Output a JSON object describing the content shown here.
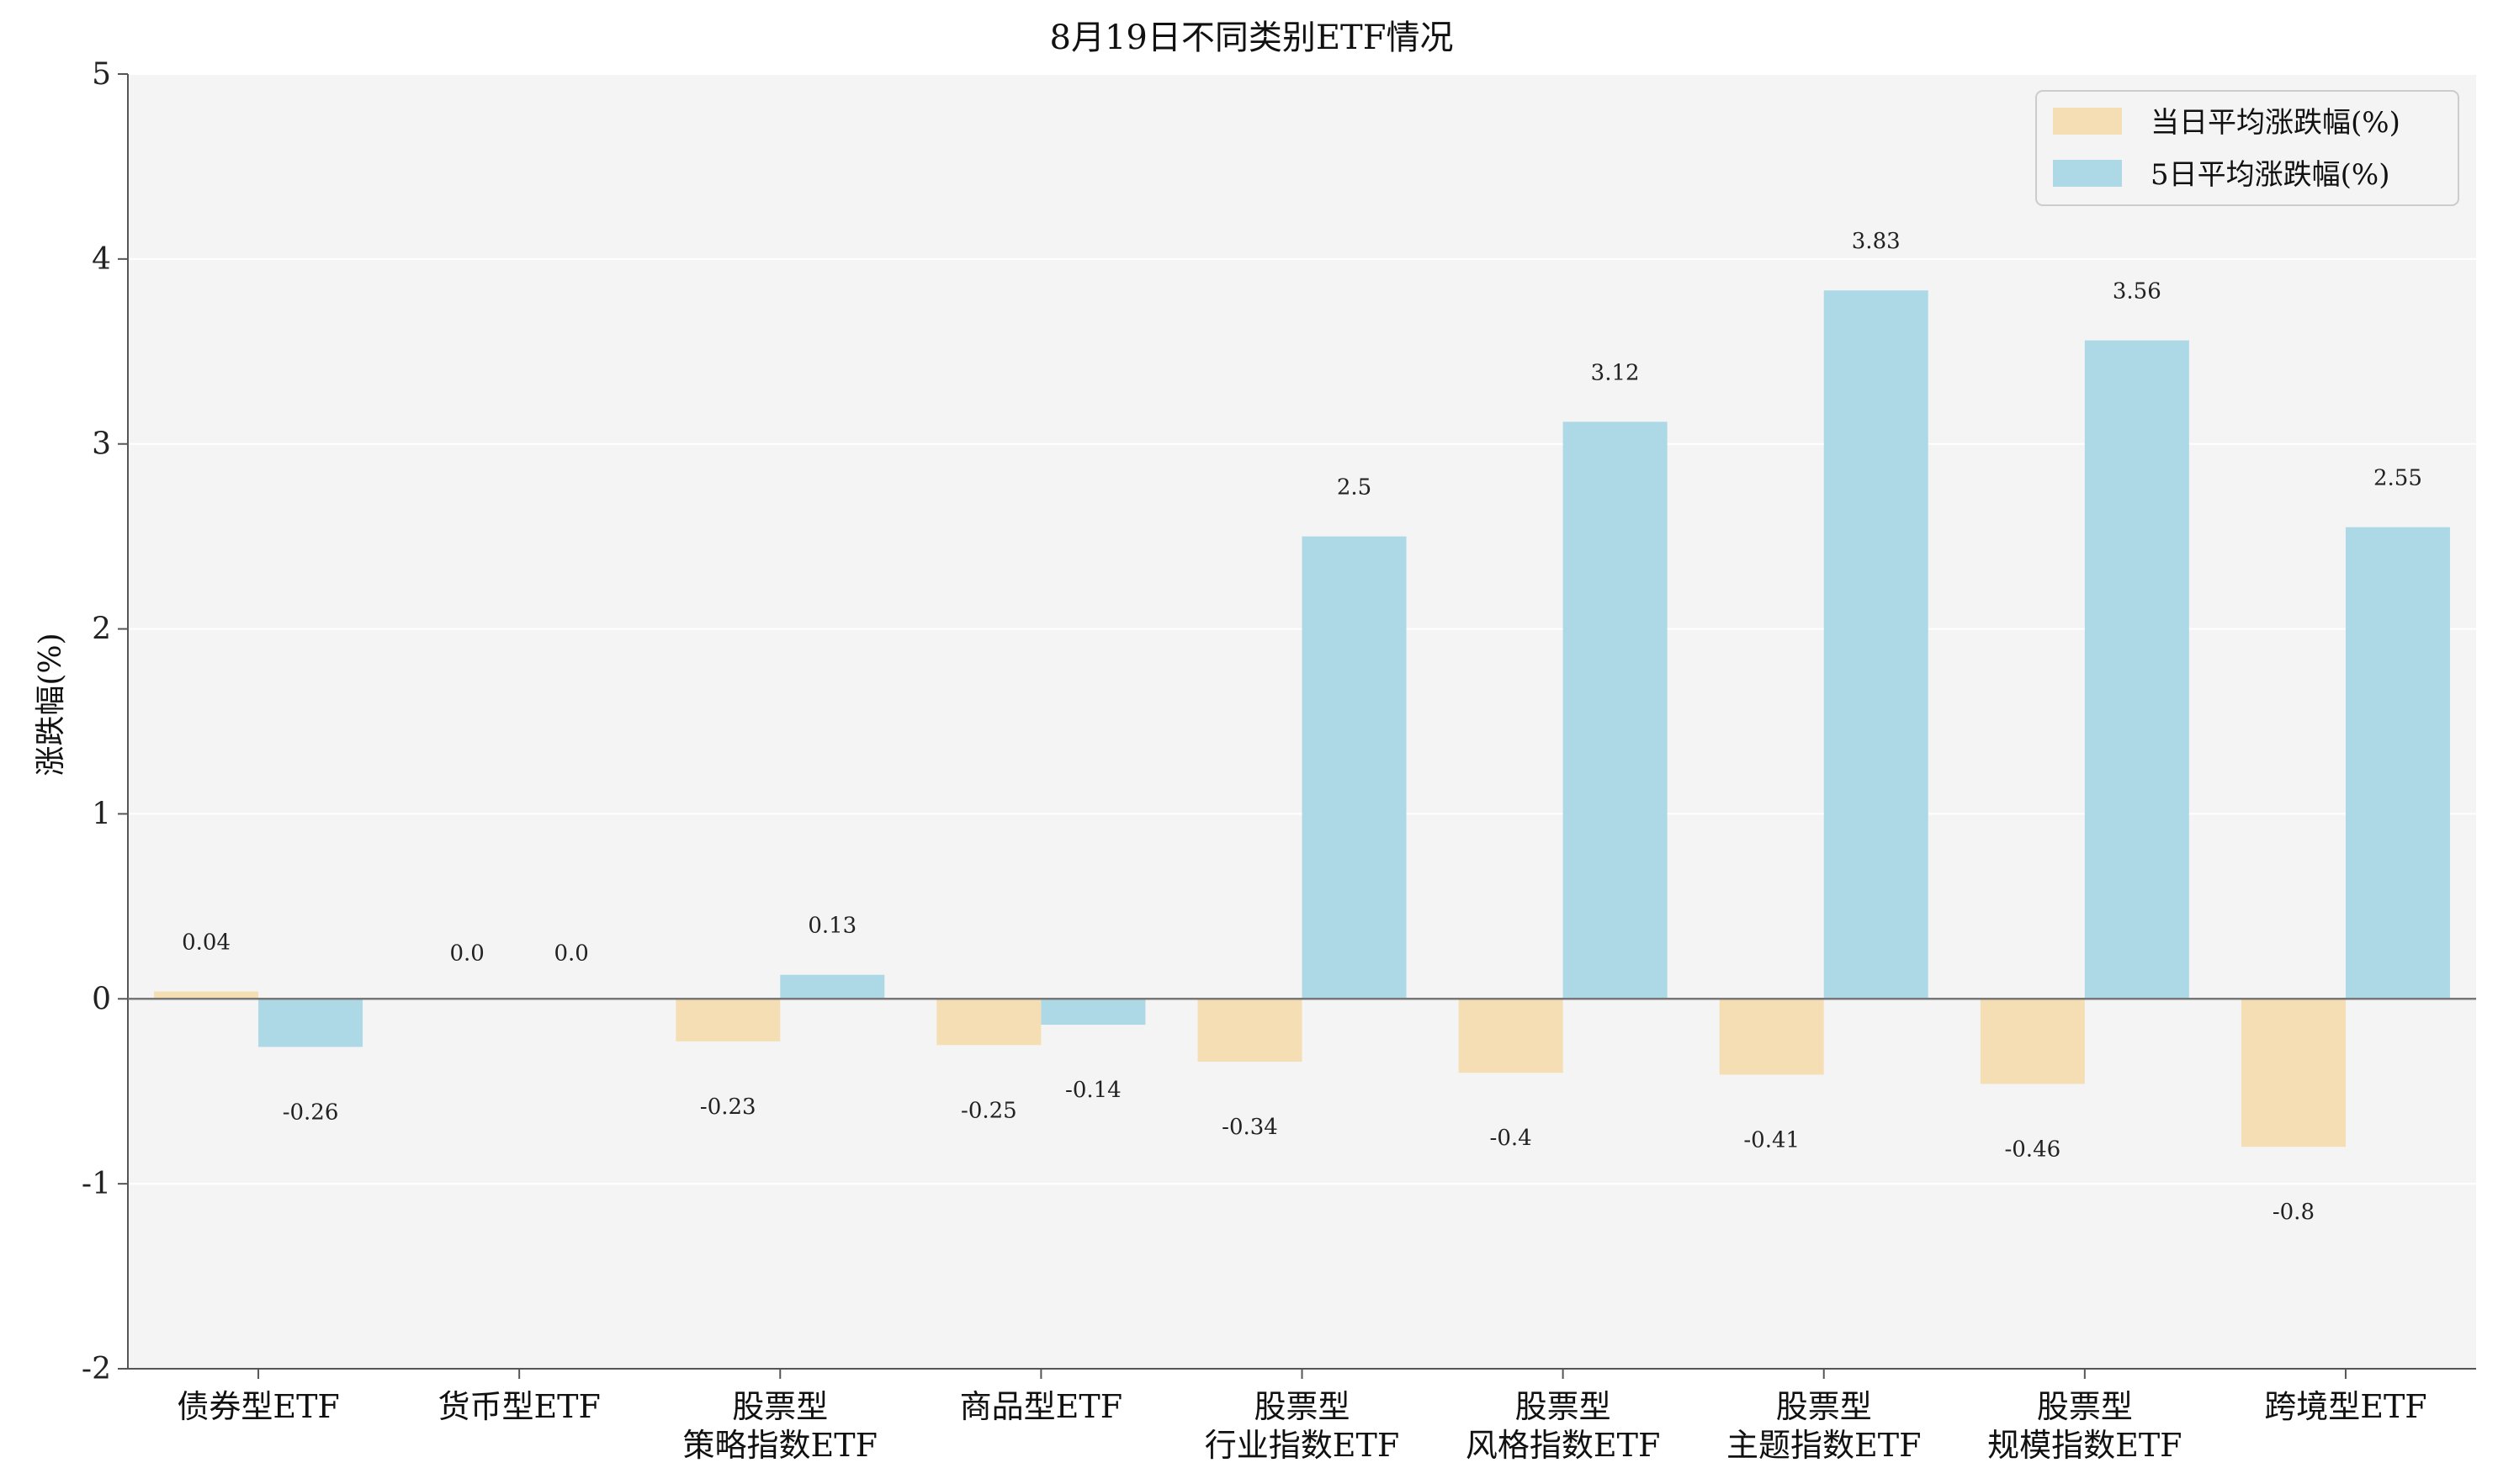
{
  "chart_data": {
    "type": "bar",
    "title": "8月19日不同类别ETF情况",
    "xlabel": "",
    "ylabel": "涨跌幅(%)",
    "ylim": [
      -2,
      5
    ],
    "yticks": [
      "-2",
      "-1",
      "0",
      "1",
      "2",
      "3",
      "4",
      "5"
    ],
    "grid": true,
    "legend_position": "top-right",
    "categories": [
      [
        "债券型ETF"
      ],
      [
        "货币型ETF"
      ],
      [
        "股票型",
        "策略指数ETF"
      ],
      [
        "商品型ETF"
      ],
      [
        "股票型",
        "行业指数ETF"
      ],
      [
        "股票型",
        "风格指数ETF"
      ],
      [
        "股票型",
        "主题指数ETF"
      ],
      [
        "股票型",
        "规模指数ETF"
      ],
      [
        "跨境型ETF"
      ]
    ],
    "series": [
      {
        "name": "当日平均涨跌幅(%)",
        "color": "#F5DEB3",
        "values": [
          0.04,
          0.0,
          -0.23,
          -0.25,
          -0.34,
          -0.4,
          -0.41,
          -0.46,
          -0.8
        ],
        "labels": [
          "0.04",
          "0.0",
          "-0.23",
          "-0.25",
          "-0.34",
          "-0.4",
          "-0.41",
          "-0.46",
          "-0.8"
        ]
      },
      {
        "name": "5日平均涨跌幅(%)",
        "color": "#ADD8E6",
        "values": [
          -0.26,
          0.0,
          0.13,
          -0.14,
          2.5,
          3.12,
          3.83,
          3.56,
          2.55
        ],
        "labels": [
          "-0.26",
          "0.0",
          "0.13",
          "-0.14",
          "2.5",
          "3.12",
          "3.83",
          "3.56",
          "2.55"
        ]
      }
    ],
    "colors": {
      "plot_background": "#F4F4F4",
      "grid": "#FFFFFF",
      "axis": "#555555",
      "zero_line": "#777777"
    }
  }
}
